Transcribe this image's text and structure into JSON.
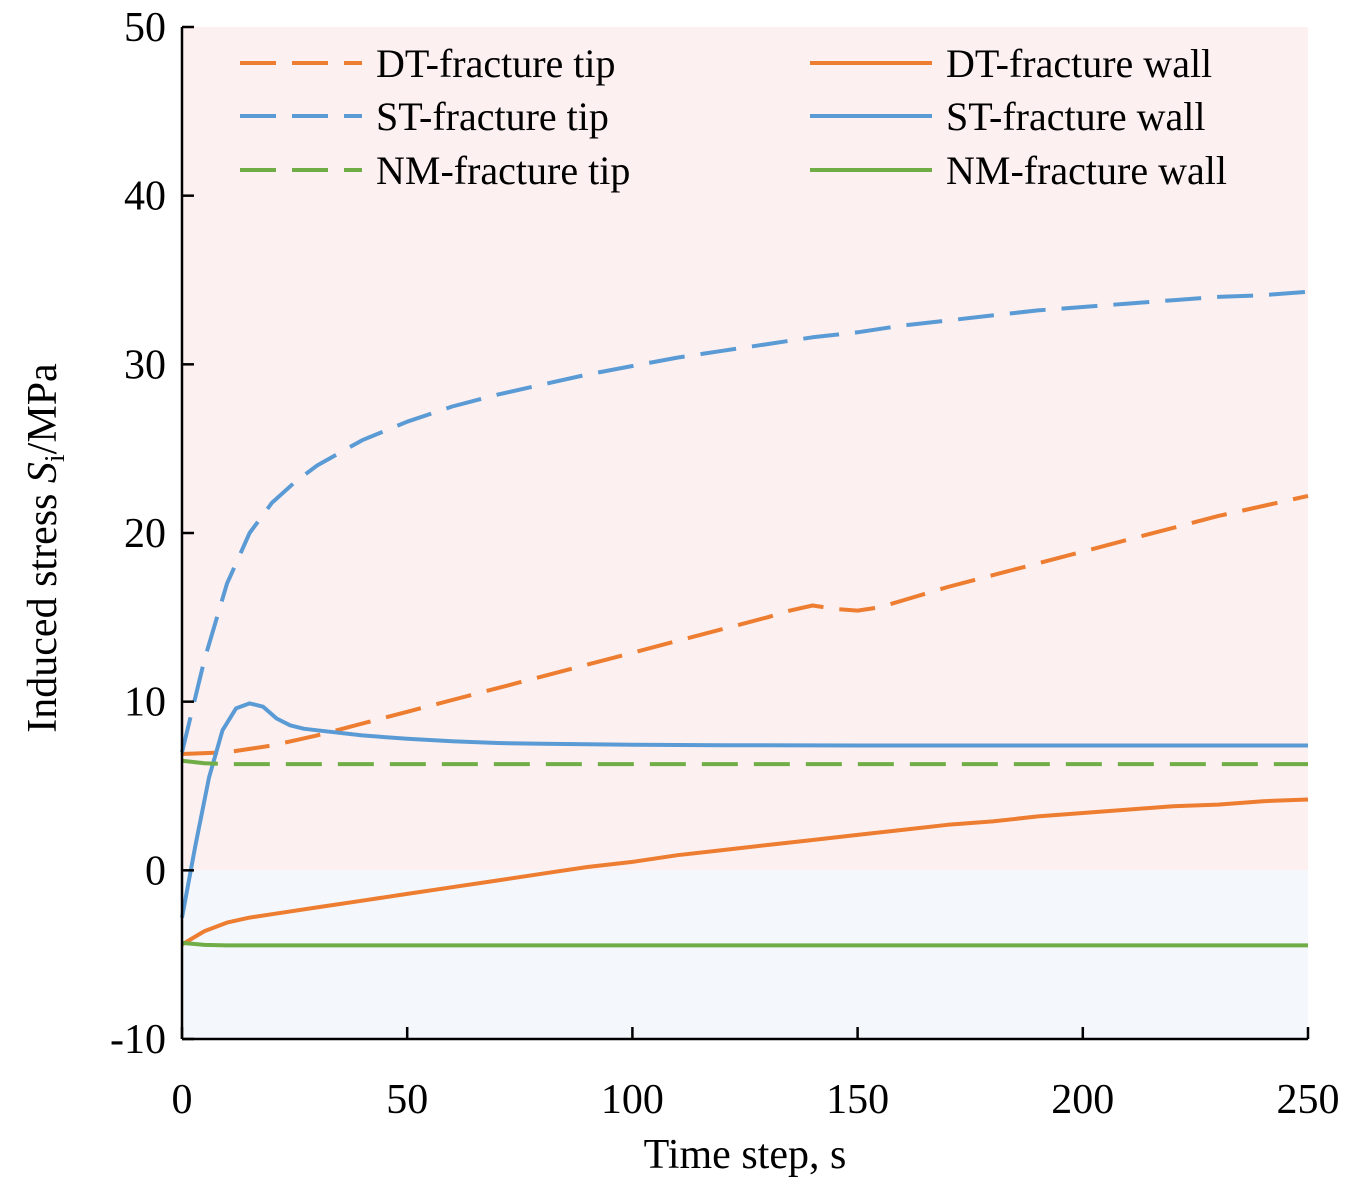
{
  "chart_data": {
    "type": "line",
    "title": "",
    "xlabel": "Time step, s",
    "ylabel": {
      "prefix": "Induced stress ",
      "symbol": "S",
      "subscript": "i",
      "suffix": "/MPa"
    },
    "xlim": [
      0,
      250
    ],
    "ylim": [
      -10,
      50
    ],
    "xticks": [
      0,
      50,
      100,
      150,
      200,
      250
    ],
    "yticks": [
      -10,
      0,
      10,
      20,
      30,
      40,
      50
    ],
    "grid": false,
    "legend_position": "top",
    "shaded_regions": [
      {
        "name": "tension-region",
        "y_from": 0,
        "y_to": 50,
        "color": "#fdf0f0"
      },
      {
        "name": "compression-region",
        "y_from": -10,
        "y_to": 0,
        "color": "#f4f7fb"
      }
    ],
    "series": [
      {
        "name": "DT-fracture tip",
        "color": "#ed7d31",
        "dash": true,
        "x": [
          0,
          10,
          20,
          30,
          40,
          50,
          60,
          70,
          80,
          90,
          100,
          110,
          120,
          130,
          135,
          140,
          145,
          150,
          155,
          160,
          170,
          180,
          190,
          200,
          210,
          220,
          230,
          240,
          250
        ],
        "y": [
          6.9,
          7.0,
          7.4,
          8.0,
          8.7,
          9.4,
          10.1,
          10.8,
          11.5,
          12.2,
          12.9,
          13.6,
          14.3,
          15.0,
          15.4,
          15.7,
          15.5,
          15.4,
          15.6,
          16.0,
          16.8,
          17.5,
          18.2,
          18.9,
          19.6,
          20.3,
          21.0,
          21.6,
          22.2
        ]
      },
      {
        "name": "DT-fracture wall",
        "color": "#ed7d31",
        "dash": false,
        "x": [
          0,
          5,
          10,
          15,
          20,
          30,
          40,
          50,
          60,
          70,
          80,
          90,
          100,
          110,
          120,
          130,
          140,
          150,
          160,
          170,
          180,
          190,
          200,
          210,
          220,
          230,
          240,
          250
        ],
        "y": [
          -4.4,
          -3.6,
          -3.1,
          -2.8,
          -2.6,
          -2.2,
          -1.8,
          -1.4,
          -1.0,
          -0.6,
          -0.2,
          0.2,
          0.5,
          0.9,
          1.2,
          1.5,
          1.8,
          2.1,
          2.4,
          2.7,
          2.9,
          3.2,
          3.4,
          3.6,
          3.8,
          3.9,
          4.1,
          4.2
        ]
      },
      {
        "name": "ST-fracture tip",
        "color": "#5b9bd5",
        "dash": true,
        "x": [
          0,
          5,
          10,
          15,
          20,
          25,
          30,
          40,
          50,
          60,
          70,
          80,
          90,
          100,
          110,
          120,
          130,
          140,
          150,
          160,
          170,
          180,
          190,
          200,
          210,
          220,
          230,
          240,
          250
        ],
        "y": [
          7.0,
          12.5,
          17.0,
          20.0,
          21.8,
          23.0,
          24.0,
          25.5,
          26.6,
          27.5,
          28.2,
          28.8,
          29.4,
          29.9,
          30.4,
          30.8,
          31.2,
          31.6,
          31.9,
          32.3,
          32.6,
          32.9,
          33.2,
          33.4,
          33.6,
          33.8,
          34.0,
          34.1,
          34.3
        ]
      },
      {
        "name": "ST-fracture wall",
        "color": "#5b9bd5",
        "dash": false,
        "x": [
          0,
          3,
          6,
          9,
          12,
          15,
          18,
          21,
          24,
          27,
          30,
          40,
          50,
          60,
          70,
          80,
          100,
          120,
          150,
          200,
          250
        ],
        "y": [
          -2.8,
          1.5,
          5.5,
          8.3,
          9.6,
          9.9,
          9.7,
          9.0,
          8.6,
          8.4,
          8.3,
          8.0,
          7.8,
          7.65,
          7.55,
          7.5,
          7.45,
          7.42,
          7.4,
          7.4,
          7.4
        ]
      },
      {
        "name": "NM-fracture tip",
        "color": "#70ad47",
        "dash": true,
        "x": [
          0,
          5,
          10,
          20,
          50,
          100,
          150,
          200,
          250
        ],
        "y": [
          6.5,
          6.35,
          6.3,
          6.3,
          6.3,
          6.3,
          6.3,
          6.3,
          6.3
        ]
      },
      {
        "name": "NM-fracture wall",
        "color": "#70ad47",
        "dash": false,
        "x": [
          0,
          5,
          10,
          20,
          50,
          100,
          150,
          200,
          250
        ],
        "y": [
          -4.3,
          -4.42,
          -4.45,
          -4.45,
          -4.45,
          -4.45,
          -4.45,
          -4.45,
          -4.45
        ]
      }
    ]
  }
}
